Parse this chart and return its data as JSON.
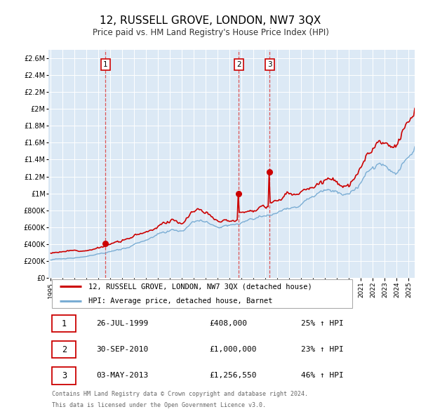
{
  "title": "12, RUSSELL GROVE, LONDON, NW7 3QX",
  "subtitle": "Price paid vs. HM Land Registry's House Price Index (HPI)",
  "title_fontsize": 11,
  "subtitle_fontsize": 8.5,
  "background_color": "#ffffff",
  "plot_bg_color": "#dce9f5",
  "grid_color": "#ffffff",
  "ylim": [
    0,
    2700000
  ],
  "yticks": [
    0,
    200000,
    400000,
    600000,
    800000,
    1000000,
    1200000,
    1400000,
    1600000,
    1800000,
    2000000,
    2200000,
    2400000,
    2600000
  ],
  "ytick_labels": [
    "£0",
    "£200K",
    "£400K",
    "£600K",
    "£800K",
    "£1M",
    "£1.2M",
    "£1.4M",
    "£1.6M",
    "£1.8M",
    "£2M",
    "£2.2M",
    "£2.4M",
    "£2.6M"
  ],
  "line1_color": "#cc0000",
  "line2_color": "#7aadd4",
  "sale_marker_color": "#cc0000",
  "vline_color": "#dd4444",
  "transactions": [
    {
      "num": 1,
      "date_num": 1999.57,
      "price": 408000,
      "label": "1",
      "pct": "25%",
      "date_str": "26-JUL-1999",
      "price_str": "£408,000"
    },
    {
      "num": 2,
      "date_num": 2010.75,
      "price": 1000000,
      "label": "2",
      "pct": "23%",
      "date_str": "30-SEP-2010",
      "price_str": "£1,000,000"
    },
    {
      "num": 3,
      "date_num": 2013.33,
      "price": 1256550,
      "label": "3",
      "pct": "46%",
      "date_str": "03-MAY-2013",
      "price_str": "£1,256,550"
    }
  ],
  "legend_line1": "12, RUSSELL GROVE, LONDON, NW7 3QX (detached house)",
  "legend_line2": "HPI: Average price, detached house, Barnet",
  "footer1": "Contains HM Land Registry data © Crown copyright and database right 2024.",
  "footer2": "This data is licensed under the Open Government Licence v3.0.",
  "xmin": 1994.8,
  "xmax": 2025.5
}
